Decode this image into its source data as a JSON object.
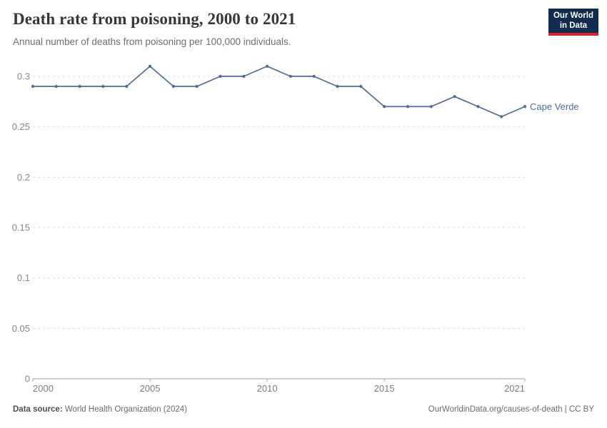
{
  "header": {
    "title": "Death rate from poisoning, 2000 to 2021",
    "subtitle": "Annual number of deaths from poisoning per 100,000 individuals.",
    "logo": {
      "line1": "Our World",
      "line2": "in Data",
      "bg_color": "#102d50",
      "accent_color": "#d8242b"
    }
  },
  "chart_data": {
    "type": "line",
    "title": "Death rate from poisoning, 2000 to 2021",
    "xlabel": "",
    "ylabel": "",
    "xlim": [
      2000,
      2021
    ],
    "ylim": [
      0,
      0.31
    ],
    "grid": "horizontal dashed",
    "legend_position": "end-of-line label",
    "x_ticks": [
      2000,
      2005,
      2010,
      2015,
      2021
    ],
    "y_ticks": [
      0,
      0.05,
      0.1,
      0.15,
      0.2,
      0.25,
      0.3
    ],
    "y_tick_labels": [
      "0",
      "0.05",
      "0.1",
      "0.15",
      "0.2",
      "0.25",
      "0.3"
    ],
    "end_label": "Cape Verde",
    "series": [
      {
        "name": "Cape Verde",
        "color": "#4d6ba3",
        "x": [
          2000,
          2001,
          2002,
          2003,
          2004,
          2005,
          2006,
          2007,
          2008,
          2009,
          2010,
          2011,
          2012,
          2013,
          2014,
          2015,
          2016,
          2017,
          2018,
          2019,
          2020,
          2021
        ],
        "values": [
          0.29,
          0.29,
          0.29,
          0.29,
          0.29,
          0.31,
          0.29,
          0.29,
          0.3,
          0.3,
          0.31,
          0.3,
          0.3,
          0.29,
          0.29,
          0.27,
          0.27,
          0.27,
          0.28,
          0.27,
          0.26,
          0.27
        ]
      }
    ]
  },
  "footer": {
    "source_label": "Data source:",
    "source_value": "World Health Organization (2024)",
    "credit": "OurWorldinData.org/causes-of-death | CC BY"
  }
}
